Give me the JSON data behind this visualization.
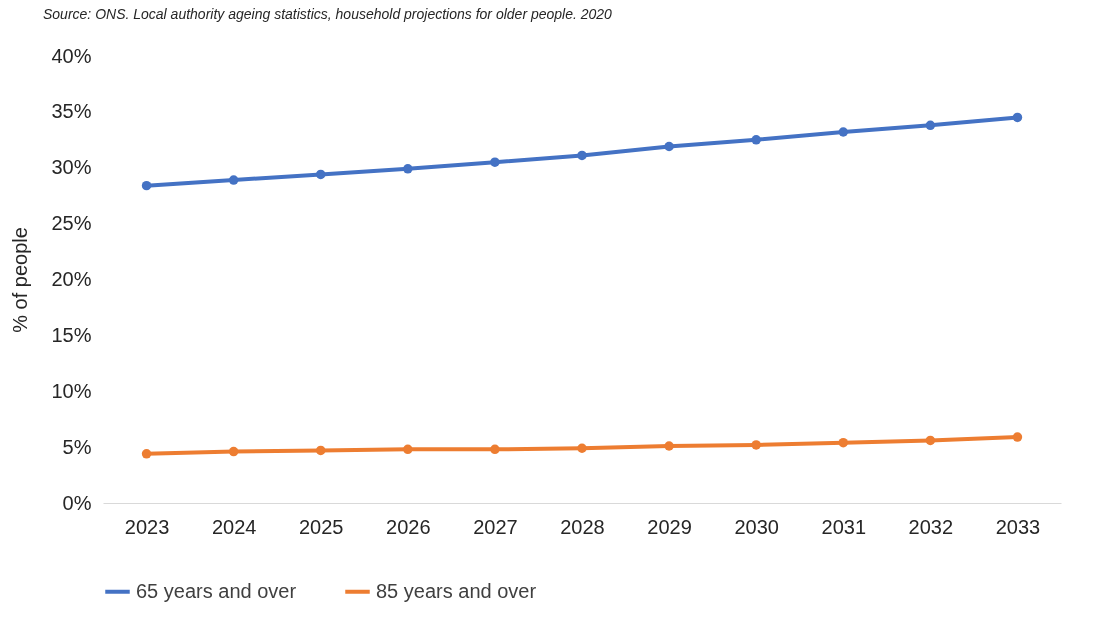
{
  "chart_data": {
    "type": "line",
    "annotations": [
      "Source: ONS. Local authority ageing statistics,  household projections for older people. 2020"
    ],
    "ylabel": "% of people",
    "categories": [
      "2023",
      "2024",
      "2025",
      "2026",
      "2027",
      "2028",
      "2029",
      "2030",
      "2031",
      "2032",
      "2033"
    ],
    "series": [
      {
        "name": "65 years and over",
        "color": "#4472c4",
        "values": [
          28.4,
          28.9,
          29.4,
          29.9,
          30.5,
          31.1,
          31.9,
          32.5,
          33.2,
          33.8,
          34.5
        ]
      },
      {
        "name": "85 years and over",
        "color": "#ed7d31",
        "values": [
          4.4,
          4.6,
          4.7,
          4.8,
          4.8,
          4.9,
          5.1,
          5.2,
          5.4,
          5.6,
          5.9
        ]
      }
    ],
    "ylim": [
      0,
      40
    ],
    "yticks": [
      {
        "value": 0,
        "label": "0%"
      },
      {
        "value": 5,
        "label": "5%"
      },
      {
        "value": 10,
        "label": "10%"
      },
      {
        "value": 15,
        "label": "15%"
      },
      {
        "value": 20,
        "label": "20%"
      },
      {
        "value": 25,
        "label": "25%"
      },
      {
        "value": 30,
        "label": "30%"
      },
      {
        "value": 35,
        "label": "35%"
      },
      {
        "value": 40,
        "label": "40%"
      }
    ],
    "grid": false,
    "legend": "bottom",
    "marker": "circle",
    "line_style": "solid"
  }
}
